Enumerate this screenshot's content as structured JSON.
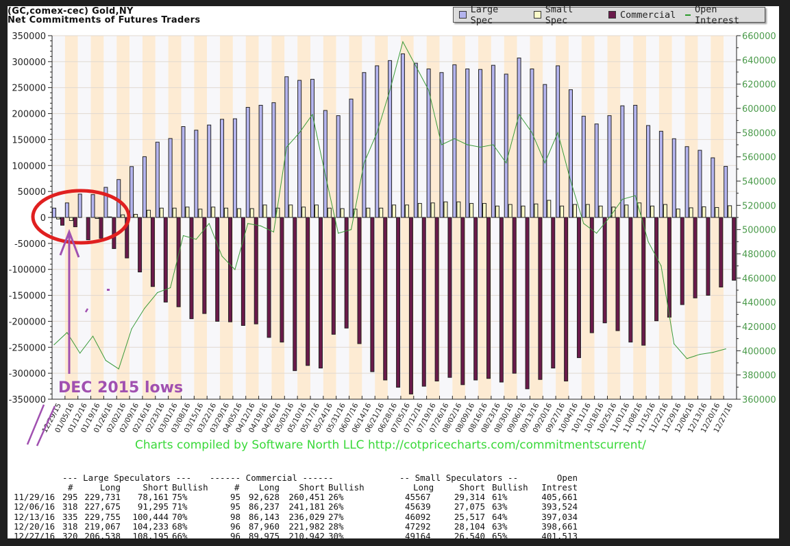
{
  "title": {
    "line1": "(GC,comex-cec) Gold,NY",
    "line2": "Net Commitments of Futures Traders"
  },
  "legend": [
    {
      "label": "Large Spec",
      "color": "#b4b4ee"
    },
    {
      "label": "Small Spec",
      "color": "#fafac8"
    },
    {
      "label": "Commercial",
      "color": "#6a1a4a"
    },
    {
      "label": "Open Interest",
      "color": "#2a9a2a"
    }
  ],
  "annotation": {
    "text": "DEC 2015 lows",
    "color": "#a050b0",
    "circle_color": "#e02020"
  },
  "credit": "Charts compiled by Software North LLC  http://cotpricecharts.com/commitmentscurrent/",
  "chart_data": {
    "type": "bar",
    "title": "Net Commitments of Futures Traders",
    "categories": [
      "12/29/15",
      "01/05/16",
      "01/12/16",
      "01/19/16",
      "01/26/16",
      "02/02/16",
      "02/09/16",
      "02/16/16",
      "02/23/16",
      "03/01/16",
      "03/08/16",
      "03/15/16",
      "03/22/16",
      "03/29/16",
      "04/05/16",
      "04/12/16",
      "04/19/16",
      "04/26/16",
      "05/03/16",
      "05/10/16",
      "05/17/16",
      "05/24/16",
      "05/31/16",
      "06/07/16",
      "06/14/16",
      "06/21/16",
      "06/28/16",
      "07/05/16",
      "07/12/16",
      "07/19/16",
      "07/26/16",
      "08/02/16",
      "08/09/16",
      "08/16/16",
      "08/23/16",
      "08/30/16",
      "09/06/16",
      "09/13/16",
      "09/20/16",
      "09/27/16",
      "10/04/16",
      "10/11/16",
      "10/18/16",
      "10/25/16",
      "11/01/16",
      "11/08/16",
      "11/15/16",
      "11/22/16",
      "11/29/16",
      "12/06/16",
      "12/13/16",
      "12/20/16",
      "12/27/16"
    ],
    "series": [
      {
        "name": "Large Spec",
        "type": "bar",
        "axis": "left",
        "values": [
          18000,
          28000,
          45000,
          44000,
          58000,
          73000,
          98000,
          117000,
          145000,
          152000,
          175000,
          168000,
          178000,
          189000,
          190000,
          212000,
          216000,
          221000,
          271000,
          264000,
          266000,
          206000,
          196000,
          228000,
          279000,
          292000,
          302000,
          315000,
          297000,
          286000,
          279000,
          294000,
          286000,
          285000,
          293000,
          276000,
          307000,
          286000,
          256000,
          292000,
          246000,
          195000,
          180000,
          196000,
          215000,
          216000,
          177000,
          166000,
          151570,
          136380,
          129311,
          114834,
          98343
        ]
      },
      {
        "name": "Small Spec",
        "type": "bar",
        "axis": "left",
        "values": [
          -3000,
          -6000,
          0,
          -2000,
          1000,
          5000,
          6000,
          14000,
          18000,
          18000,
          20000,
          16000,
          20000,
          18000,
          17000,
          17000,
          24000,
          18000,
          24000,
          20000,
          24000,
          18000,
          17000,
          16000,
          18000,
          18000,
          24000,
          24000,
          27000,
          28000,
          30000,
          30000,
          27000,
          27000,
          22000,
          25000,
          22000,
          26000,
          33000,
          22000,
          25000,
          25000,
          22000,
          20000,
          24000,
          28000,
          22000,
          25000,
          16253,
          18564,
          20575,
          19188,
          22624
        ]
      },
      {
        "name": "Commercial",
        "type": "bar",
        "axis": "left",
        "values": [
          -15000,
          -18000,
          -43000,
          -40000,
          -60000,
          -78000,
          -105000,
          -133000,
          -163000,
          -172000,
          -195000,
          -185000,
          -200000,
          -201000,
          -208000,
          -205000,
          -231000,
          -240000,
          -295000,
          -285000,
          -290000,
          -225000,
          -213000,
          -243000,
          -297000,
          -313000,
          -327000,
          -340000,
          -325000,
          -315000,
          -308000,
          -322000,
          -313000,
          -310000,
          -317000,
          -300000,
          -330000,
          -312000,
          -290000,
          -315000,
          -270000,
          -222000,
          -203000,
          -218000,
          -240000,
          -246000,
          -199000,
          -192000,
          -167823,
          -154944,
          -149886,
          -134022,
          -120967
        ]
      },
      {
        "name": "Open Interest",
        "type": "line",
        "axis": "right",
        "values": [
          405000,
          415000,
          398000,
          412000,
          392000,
          385000,
          418000,
          435000,
          448000,
          452000,
          495000,
          492000,
          505000,
          478000,
          467000,
          505000,
          503000,
          498000,
          568000,
          580000,
          595000,
          545000,
          497000,
          500000,
          555000,
          580000,
          615000,
          655000,
          635000,
          615000,
          570000,
          575000,
          570000,
          568000,
          570000,
          555000,
          595000,
          580000,
          555000,
          580000,
          540000,
          505000,
          497000,
          510000,
          525000,
          528000,
          490000,
          470000,
          405661,
          393524,
          397034,
          398661,
          401513
        ]
      }
    ],
    "ylim": [
      -350000,
      350000
    ],
    "yticks": [
      "350000",
      "300000",
      "250000",
      "200000",
      "150000",
      "100000",
      "50000",
      "0",
      "-50000",
      "-100000",
      "-150000",
      "-200000",
      "-250000",
      "-300000",
      "-350000"
    ],
    "y2lim": [
      360000,
      660000
    ],
    "y2ticks": [
      "660000",
      "640000",
      "620000",
      "600000",
      "580000",
      "560000",
      "540000",
      "520000",
      "500000",
      "480000",
      "460000",
      "440000",
      "420000",
      "400000",
      "380000",
      "360000"
    ],
    "grid": true,
    "legend_position": "top-right"
  },
  "table": {
    "group_headers": {
      "large": "--- Large Speculators ---",
      "commercial": "------ Commercial ------",
      "small": "-- Small Speculators --",
      "oi": "Open"
    },
    "col_headers": {
      "ls_num": "#",
      "ls_long": "Long",
      "ls_short": "Short",
      "ls_bull": "Bullish",
      "cm_num": "#",
      "cm_long": "Long",
      "cm_short": "Short",
      "cm_bull": "Bullish",
      "ss_long": "Long",
      "ss_short": "Short",
      "ss_bull": "Bullish",
      "oi": "Intrest"
    },
    "rows": [
      {
        "date": "11/29/16",
        "ls_num": "295",
        "ls_long": "229,731",
        "ls_short": "78,161",
        "ls_bull": "75%",
        "cm_num": "95",
        "cm_long": "92,628",
        "cm_short": "260,451",
        "cm_bull": "26%",
        "ss_long": "45567",
        "ss_short": "29,314",
        "ss_bull": "61%",
        "oi": "405,661"
      },
      {
        "date": "12/06/16",
        "ls_num": "318",
        "ls_long": "227,675",
        "ls_short": "91,295",
        "ls_bull": "71%",
        "cm_num": "95",
        "cm_long": "86,237",
        "cm_short": "241,181",
        "cm_bull": "26%",
        "ss_long": "45639",
        "ss_short": "27,075",
        "ss_bull": "63%",
        "oi": "393,524"
      },
      {
        "date": "12/13/16",
        "ls_num": "335",
        "ls_long": "229,755",
        "ls_short": "100,444",
        "ls_bull": "70%",
        "cm_num": "98",
        "cm_long": "86,143",
        "cm_short": "236,029",
        "cm_bull": "27%",
        "ss_long": "46092",
        "ss_short": "25,517",
        "ss_bull": "64%",
        "oi": "397,034"
      },
      {
        "date": "12/20/16",
        "ls_num": "318",
        "ls_long": "219,067",
        "ls_short": "104,233",
        "ls_bull": "68%",
        "cm_num": "96",
        "cm_long": "87,960",
        "cm_short": "221,982",
        "cm_bull": "28%",
        "ss_long": "47292",
        "ss_short": "28,104",
        "ss_bull": "63%",
        "oi": "398,661"
      },
      {
        "date": "12/27/16",
        "ls_num": "320",
        "ls_long": "206,538",
        "ls_short": "108,195",
        "ls_bull": "66%",
        "cm_num": "96",
        "cm_long": "89,975",
        "cm_short": "210,942",
        "cm_bull": "30%",
        "ss_long": "49164",
        "ss_short": "26,540",
        "ss_bull": "65%",
        "oi": "401,513"
      }
    ]
  }
}
